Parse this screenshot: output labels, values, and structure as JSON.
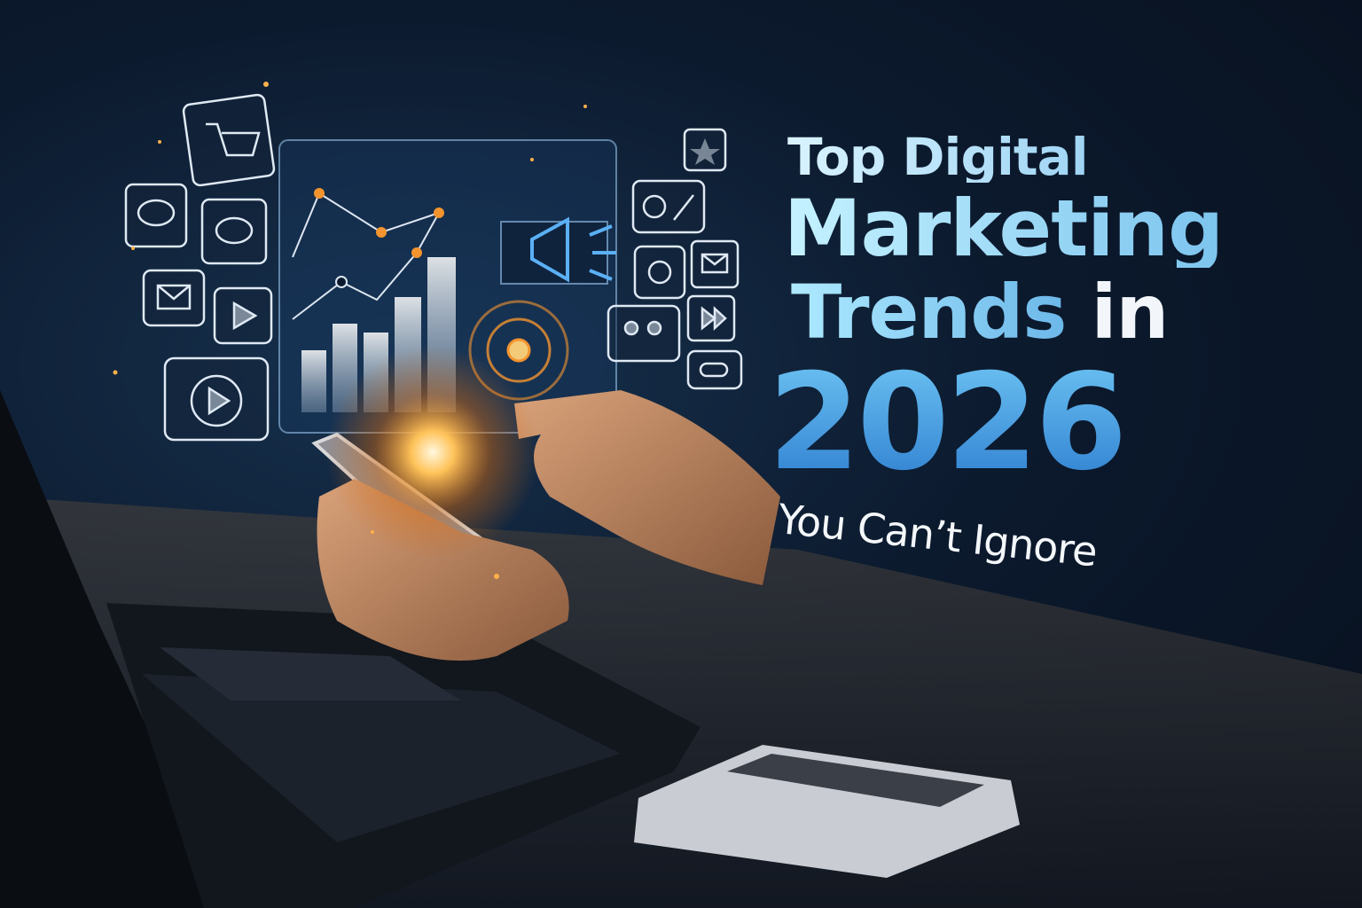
{
  "headline": {
    "line1": "Top Digital",
    "line2": "Marketing",
    "line3_a": "Trends",
    "line3_b": "in",
    "year": "2026",
    "tagline": "You Can’t Ignore"
  },
  "colors": {
    "background": "#0c1a2e",
    "headline_light": "#c5f2ff",
    "year_blue": "#3f8fdc",
    "glow_orange": "#ffb347",
    "icon_stroke": "#e8f1fb"
  },
  "icons": [
    "shopping-cart-icon",
    "chat-bubble-icon",
    "chat-bubble-icon",
    "mail-icon",
    "video-play-icon",
    "play-circle-icon",
    "star-icon",
    "globe-pen-icon",
    "at-sign-icon",
    "mail-icon",
    "team-icon",
    "forward-icon",
    "link-icon",
    "megaphone-icon",
    "target-icon",
    "bar-chart-icon",
    "line-graph-icon"
  ]
}
